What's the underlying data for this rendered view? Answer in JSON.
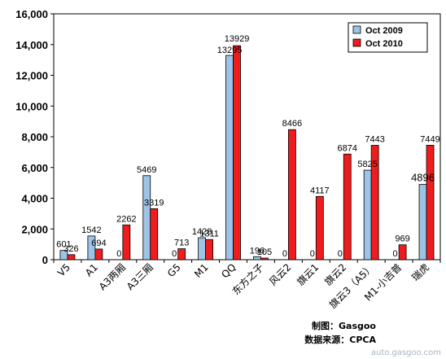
{
  "chart_data": {
    "type": "bar",
    "categories": [
      "V5",
      "A1",
      "A3两厢",
      "A3三厢",
      "G5",
      "M1",
      "QQ",
      "东方之子",
      "风云2",
      "旗云1",
      "旗云2",
      "旗云3（A5）",
      "M1-小吉普",
      "瑞虎"
    ],
    "series": [
      {
        "name": "Oct 2009",
        "color": "#9dc3e6",
        "values": [
          601,
          1542,
          0,
          5469,
          0,
          1428,
          13295,
          196,
          0,
          0,
          0,
          5825,
          0,
          4896
        ],
        "labels": [
          "601",
          "1542",
          "0",
          "5469",
          "0",
          "1428",
          "13295",
          "196",
          "0",
          "0",
          "0",
          "5825",
          "0",
          "4896"
        ]
      },
      {
        "name": "Oct 2010",
        "color": "#ee1c1c",
        "values": [
          326,
          694,
          2262,
          3319,
          713,
          1311,
          13929,
          105,
          8466,
          4117,
          6874,
          7443,
          969,
          7449
        ],
        "labels": [
          "326",
          "694",
          "2262",
          "3319",
          "713",
          "1311",
          "13929",
          "105",
          "8466",
          "4117",
          "6874",
          "7443",
          "969",
          "7449"
        ]
      }
    ],
    "ylim": [
      0,
      16000
    ],
    "y_ticks": [
      "0",
      "2,000",
      "4,000",
      "6,000",
      "8,000",
      "10,000",
      "12,000",
      "14,000",
      "16,000"
    ],
    "legend_position": "top-right",
    "grid": false
  },
  "credits": {
    "maker": "制图：Gasgoo",
    "source": "数据来源：CPCA"
  },
  "watermark": "auto.gasgoo.com"
}
